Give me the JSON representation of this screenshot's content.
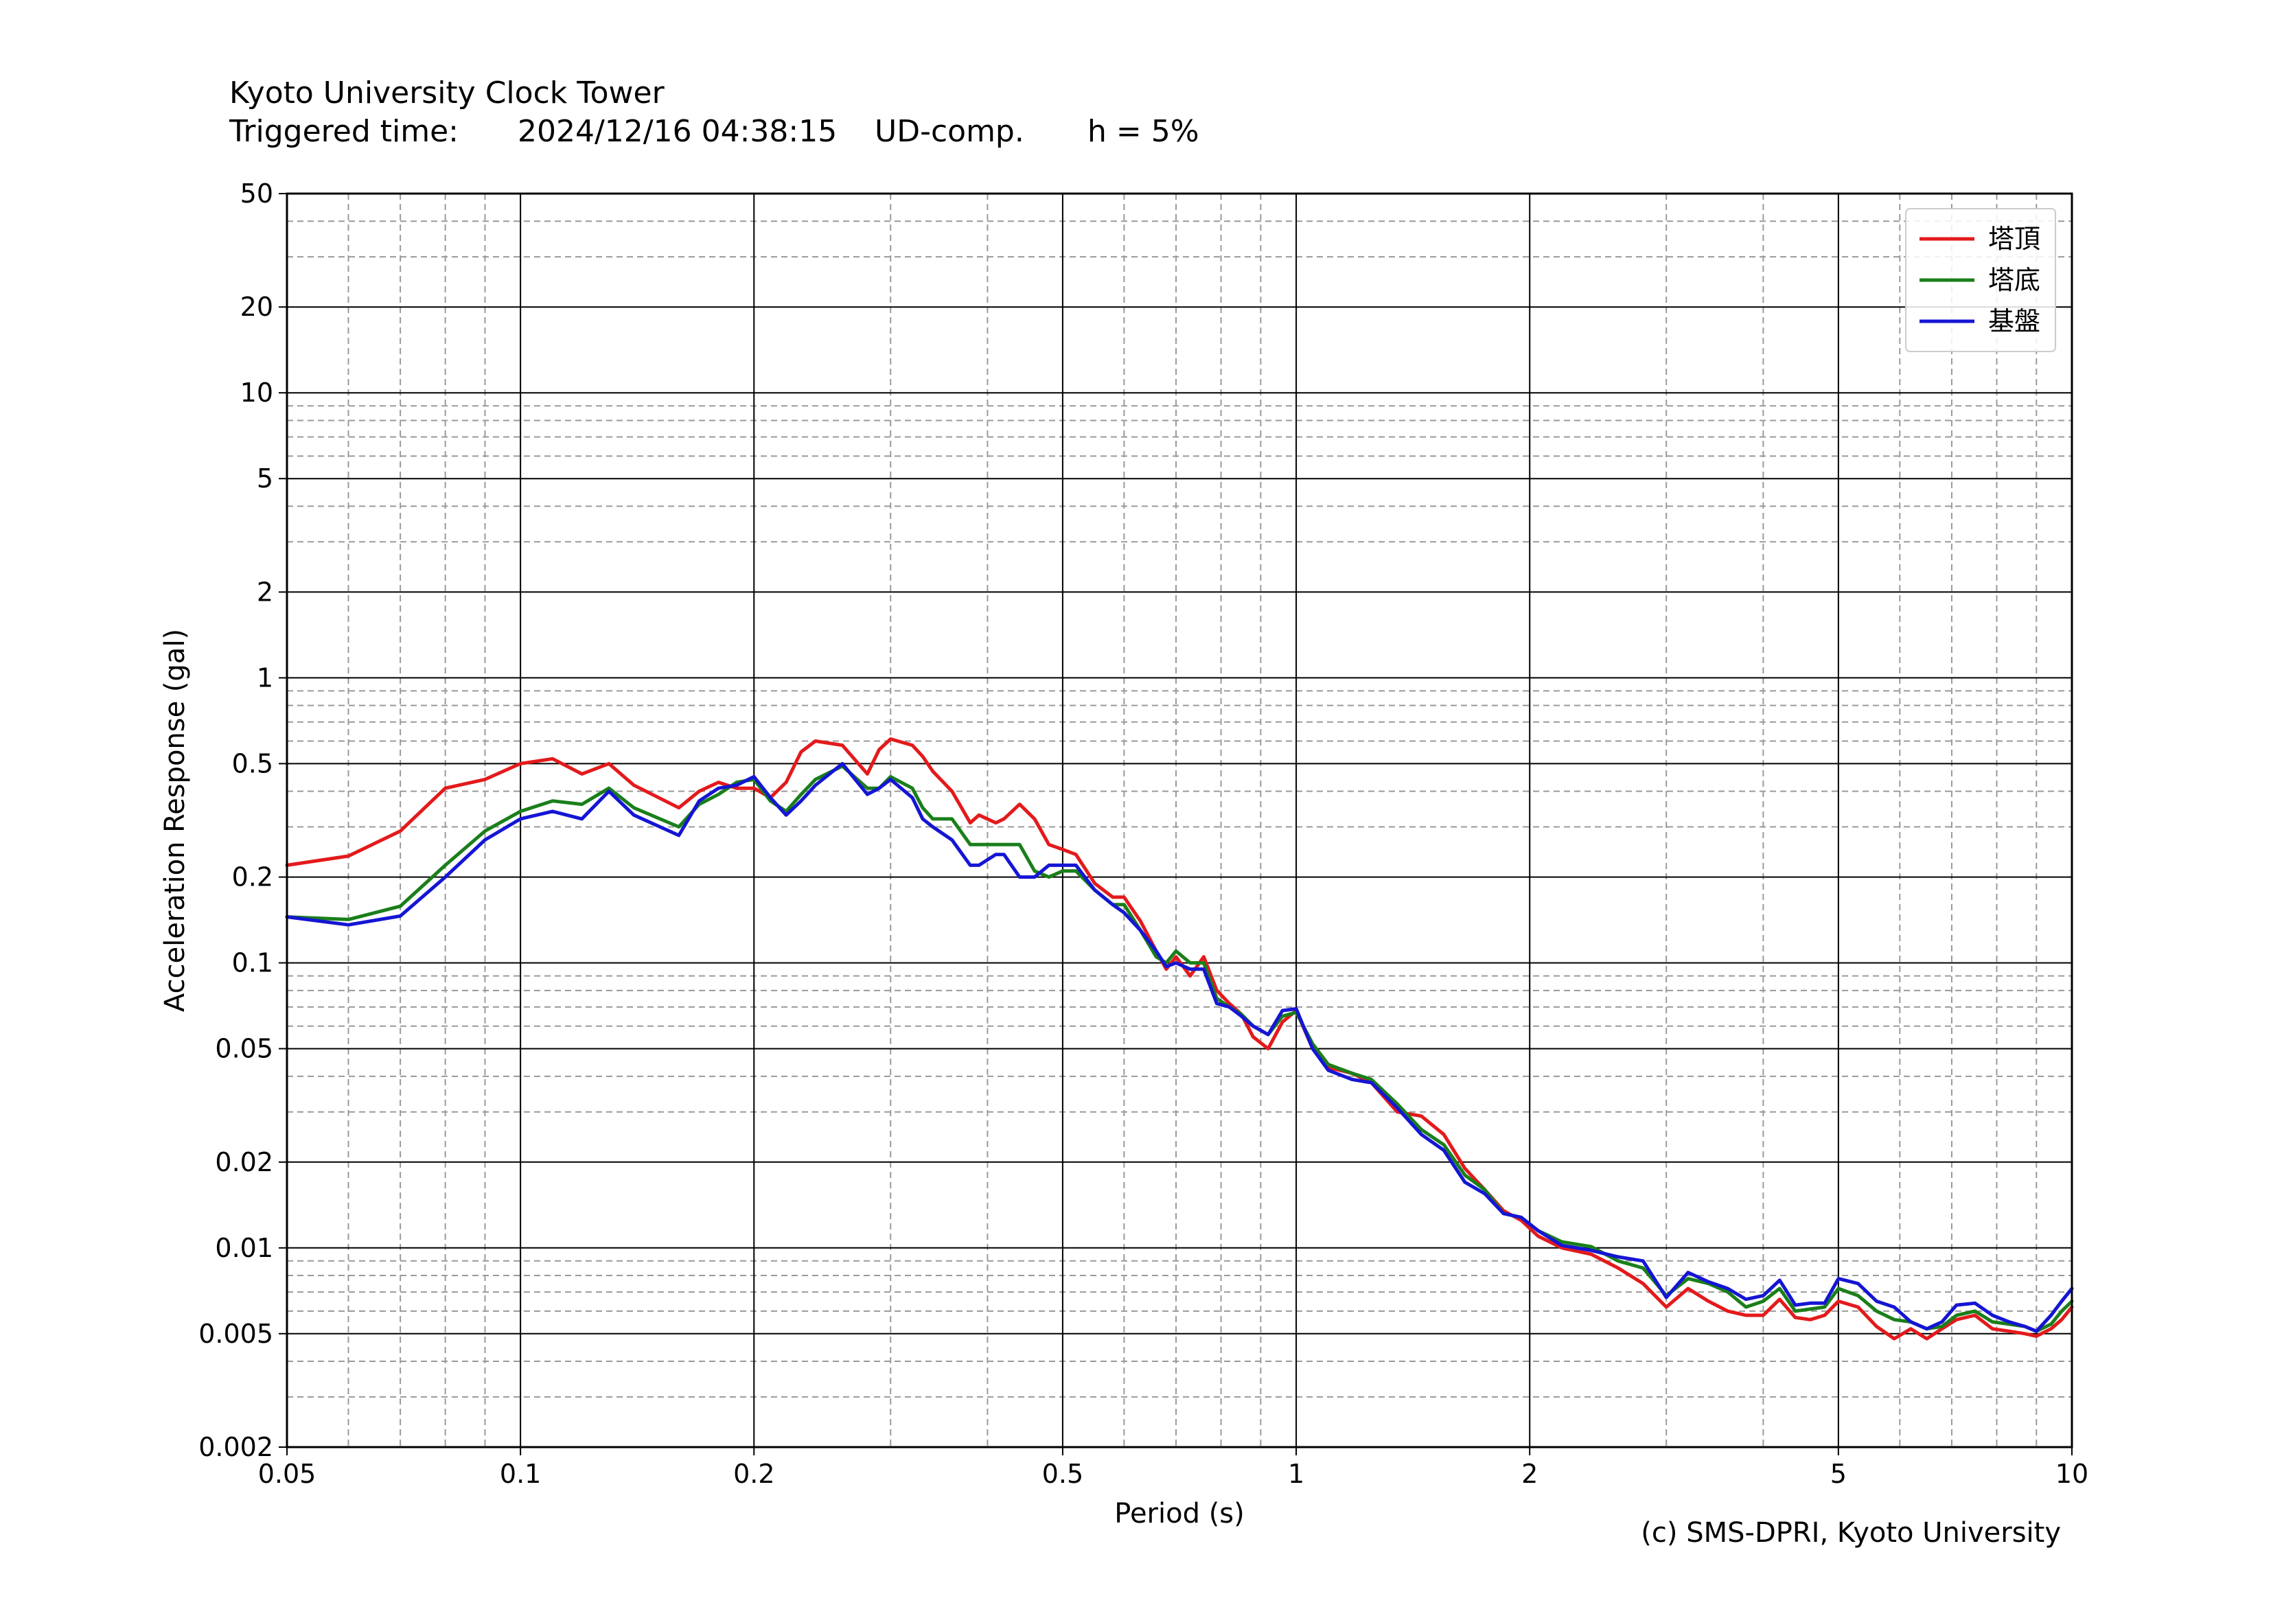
{
  "header": {
    "title": "Kyoto University Clock Tower",
    "trigger_label": "Triggered time:",
    "trigger_time": "2024/12/16 04:38:15",
    "component": "UD-comp.",
    "damping": "h = 5%"
  },
  "credit": "(c) SMS-DPRI, Kyoto University",
  "chart_data": {
    "type": "line",
    "title": "Kyoto University Clock Tower",
    "xlabel": "Period (s)",
    "ylabel": "Acceleration Response (gal)",
    "xscale": "log",
    "yscale": "log",
    "xlim": [
      0.05,
      10
    ],
    "ylim": [
      0.002,
      50
    ],
    "xticks": [
      {
        "v": 0.05,
        "label": "0.05"
      },
      {
        "v": 0.1,
        "label": "0.1"
      },
      {
        "v": 0.2,
        "label": "0.2"
      },
      {
        "v": 0.5,
        "label": "0.5"
      },
      {
        "v": 1,
        "label": "1"
      },
      {
        "v": 2,
        "label": "2"
      },
      {
        "v": 5,
        "label": "5"
      },
      {
        "v": 10,
        "label": "10"
      }
    ],
    "yticks": [
      {
        "v": 0.002,
        "label": "0.002"
      },
      {
        "v": 0.005,
        "label": "0.005"
      },
      {
        "v": 0.01,
        "label": "0.01"
      },
      {
        "v": 0.02,
        "label": "0.02"
      },
      {
        "v": 0.05,
        "label": "0.05"
      },
      {
        "v": 0.1,
        "label": "0.1"
      },
      {
        "v": 0.2,
        "label": "0.2"
      },
      {
        "v": 0.5,
        "label": "0.5"
      },
      {
        "v": 1,
        "label": "1"
      },
      {
        "v": 2,
        "label": "2"
      },
      {
        "v": 5,
        "label": "5"
      },
      {
        "v": 10,
        "label": "10"
      },
      {
        "v": 20,
        "label": "20"
      },
      {
        "v": 50,
        "label": "50"
      }
    ],
    "grid": true,
    "legend_position": "top-right",
    "series": [
      {
        "name": "塔頂",
        "color": "#e31a1c",
        "points": [
          [
            0.05,
            0.22
          ],
          [
            0.06,
            0.237
          ],
          [
            0.07,
            0.29
          ],
          [
            0.08,
            0.41
          ],
          [
            0.09,
            0.44
          ],
          [
            0.1,
            0.5
          ],
          [
            0.11,
            0.52
          ],
          [
            0.12,
            0.46
          ],
          [
            0.13,
            0.5
          ],
          [
            0.14,
            0.42
          ],
          [
            0.16,
            0.35
          ],
          [
            0.17,
            0.4
          ],
          [
            0.18,
            0.43
          ],
          [
            0.19,
            0.41
          ],
          [
            0.2,
            0.41
          ],
          [
            0.21,
            0.38
          ],
          [
            0.22,
            0.43
          ],
          [
            0.23,
            0.55
          ],
          [
            0.24,
            0.6
          ],
          [
            0.26,
            0.58
          ],
          [
            0.28,
            0.46
          ],
          [
            0.29,
            0.56
          ],
          [
            0.3,
            0.61
          ],
          [
            0.32,
            0.58
          ],
          [
            0.33,
            0.53
          ],
          [
            0.34,
            0.47
          ],
          [
            0.36,
            0.4
          ],
          [
            0.38,
            0.31
          ],
          [
            0.39,
            0.33
          ],
          [
            0.41,
            0.31
          ],
          [
            0.42,
            0.32
          ],
          [
            0.44,
            0.36
          ],
          [
            0.46,
            0.32
          ],
          [
            0.48,
            0.26
          ],
          [
            0.5,
            0.25
          ],
          [
            0.52,
            0.24
          ],
          [
            0.55,
            0.19
          ],
          [
            0.58,
            0.17
          ],
          [
            0.6,
            0.17
          ],
          [
            0.63,
            0.14
          ],
          [
            0.66,
            0.11
          ],
          [
            0.68,
            0.095
          ],
          [
            0.7,
            0.105
          ],
          [
            0.73,
            0.09
          ],
          [
            0.76,
            0.105
          ],
          [
            0.79,
            0.08
          ],
          [
            0.82,
            0.072
          ],
          [
            0.85,
            0.066
          ],
          [
            0.88,
            0.055
          ],
          [
            0.92,
            0.05
          ],
          [
            0.96,
            0.062
          ],
          [
            1.0,
            0.068
          ],
          [
            1.05,
            0.05
          ],
          [
            1.1,
            0.043
          ],
          [
            1.18,
            0.041
          ],
          [
            1.25,
            0.038
          ],
          [
            1.35,
            0.03
          ],
          [
            1.45,
            0.029
          ],
          [
            1.55,
            0.025
          ],
          [
            1.65,
            0.019
          ],
          [
            1.75,
            0.016
          ],
          [
            1.85,
            0.0135
          ],
          [
            1.95,
            0.0125
          ],
          [
            2.05,
            0.011
          ],
          [
            2.2,
            0.01
          ],
          [
            2.4,
            0.0095
          ],
          [
            2.6,
            0.0085
          ],
          [
            2.8,
            0.0075
          ],
          [
            3.0,
            0.0062
          ],
          [
            3.2,
            0.0072
          ],
          [
            3.4,
            0.0065
          ],
          [
            3.6,
            0.006
          ],
          [
            3.8,
            0.0058
          ],
          [
            4.0,
            0.0058
          ],
          [
            4.2,
            0.0066
          ],
          [
            4.4,
            0.0057
          ],
          [
            4.6,
            0.0056
          ],
          [
            4.8,
            0.0058
          ],
          [
            5.0,
            0.0065
          ],
          [
            5.3,
            0.0062
          ],
          [
            5.6,
            0.0053
          ],
          [
            5.9,
            0.0048
          ],
          [
            6.2,
            0.0052
          ],
          [
            6.5,
            0.0048
          ],
          [
            6.8,
            0.0052
          ],
          [
            7.1,
            0.0056
          ],
          [
            7.5,
            0.0058
          ],
          [
            7.9,
            0.0052
          ],
          [
            8.3,
            0.0051
          ],
          [
            8.7,
            0.005
          ],
          [
            9.0,
            0.0049
          ],
          [
            9.4,
            0.0052
          ],
          [
            9.7,
            0.0056
          ],
          [
            10.0,
            0.0062
          ]
        ]
      },
      {
        "name": "塔底",
        "color": "#1a7f1a",
        "points": [
          [
            0.05,
            0.145
          ],
          [
            0.06,
            0.142
          ],
          [
            0.07,
            0.158
          ],
          [
            0.08,
            0.22
          ],
          [
            0.09,
            0.29
          ],
          [
            0.1,
            0.34
          ],
          [
            0.11,
            0.37
          ],
          [
            0.12,
            0.36
          ],
          [
            0.13,
            0.41
          ],
          [
            0.14,
            0.35
          ],
          [
            0.16,
            0.3
          ],
          [
            0.17,
            0.36
          ],
          [
            0.18,
            0.39
          ],
          [
            0.19,
            0.43
          ],
          [
            0.2,
            0.44
          ],
          [
            0.21,
            0.37
          ],
          [
            0.22,
            0.34
          ],
          [
            0.23,
            0.39
          ],
          [
            0.24,
            0.44
          ],
          [
            0.26,
            0.49
          ],
          [
            0.28,
            0.41
          ],
          [
            0.29,
            0.41
          ],
          [
            0.3,
            0.45
          ],
          [
            0.32,
            0.41
          ],
          [
            0.33,
            0.35
          ],
          [
            0.34,
            0.32
          ],
          [
            0.36,
            0.32
          ],
          [
            0.38,
            0.26
          ],
          [
            0.4,
            0.26
          ],
          [
            0.42,
            0.26
          ],
          [
            0.44,
            0.26
          ],
          [
            0.46,
            0.21
          ],
          [
            0.48,
            0.2
          ],
          [
            0.5,
            0.21
          ],
          [
            0.52,
            0.21
          ],
          [
            0.55,
            0.18
          ],
          [
            0.58,
            0.16
          ],
          [
            0.6,
            0.16
          ],
          [
            0.63,
            0.13
          ],
          [
            0.66,
            0.105
          ],
          [
            0.68,
            0.1
          ],
          [
            0.7,
            0.11
          ],
          [
            0.73,
            0.1
          ],
          [
            0.76,
            0.1
          ],
          [
            0.79,
            0.075
          ],
          [
            0.82,
            0.07
          ],
          [
            0.85,
            0.066
          ],
          [
            0.88,
            0.06
          ],
          [
            0.92,
            0.056
          ],
          [
            0.96,
            0.065
          ],
          [
            1.0,
            0.067
          ],
          [
            1.05,
            0.052
          ],
          [
            1.1,
            0.044
          ],
          [
            1.18,
            0.041
          ],
          [
            1.25,
            0.039
          ],
          [
            1.35,
            0.032
          ],
          [
            1.45,
            0.026
          ],
          [
            1.55,
            0.023
          ],
          [
            1.65,
            0.018
          ],
          [
            1.75,
            0.016
          ],
          [
            1.85,
            0.0132
          ],
          [
            1.95,
            0.0128
          ],
          [
            2.05,
            0.0115
          ],
          [
            2.2,
            0.0105
          ],
          [
            2.4,
            0.0101
          ],
          [
            2.6,
            0.009
          ],
          [
            2.8,
            0.0085
          ],
          [
            3.0,
            0.0068
          ],
          [
            3.2,
            0.0078
          ],
          [
            3.4,
            0.0075
          ],
          [
            3.6,
            0.007
          ],
          [
            3.8,
            0.0062
          ],
          [
            4.0,
            0.0065
          ],
          [
            4.2,
            0.0072
          ],
          [
            4.4,
            0.006
          ],
          [
            4.6,
            0.0061
          ],
          [
            4.8,
            0.0062
          ],
          [
            5.0,
            0.0072
          ],
          [
            5.3,
            0.0068
          ],
          [
            5.6,
            0.006
          ],
          [
            5.9,
            0.0056
          ],
          [
            6.2,
            0.0055
          ],
          [
            6.5,
            0.0052
          ],
          [
            6.8,
            0.0053
          ],
          [
            7.1,
            0.0058
          ],
          [
            7.5,
            0.006
          ],
          [
            7.9,
            0.0055
          ],
          [
            8.3,
            0.0054
          ],
          [
            8.7,
            0.0053
          ],
          [
            9.0,
            0.0051
          ],
          [
            9.4,
            0.0054
          ],
          [
            9.7,
            0.006
          ],
          [
            10.0,
            0.0065
          ]
        ]
      },
      {
        "name": "基盤",
        "color": "#1515d4",
        "points": [
          [
            0.05,
            0.145
          ],
          [
            0.06,
            0.136
          ],
          [
            0.07,
            0.146
          ],
          [
            0.08,
            0.2
          ],
          [
            0.09,
            0.27
          ],
          [
            0.1,
            0.32
          ],
          [
            0.11,
            0.34
          ],
          [
            0.12,
            0.32
          ],
          [
            0.13,
            0.4
          ],
          [
            0.14,
            0.33
          ],
          [
            0.16,
            0.28
          ],
          [
            0.17,
            0.37
          ],
          [
            0.18,
            0.41
          ],
          [
            0.19,
            0.42
          ],
          [
            0.2,
            0.45
          ],
          [
            0.21,
            0.38
          ],
          [
            0.22,
            0.33
          ],
          [
            0.23,
            0.37
          ],
          [
            0.24,
            0.42
          ],
          [
            0.26,
            0.5
          ],
          [
            0.28,
            0.39
          ],
          [
            0.29,
            0.41
          ],
          [
            0.3,
            0.44
          ],
          [
            0.32,
            0.38
          ],
          [
            0.33,
            0.32
          ],
          [
            0.34,
            0.3
          ],
          [
            0.36,
            0.27
          ],
          [
            0.38,
            0.22
          ],
          [
            0.39,
            0.22
          ],
          [
            0.41,
            0.24
          ],
          [
            0.42,
            0.24
          ],
          [
            0.44,
            0.2
          ],
          [
            0.46,
            0.2
          ],
          [
            0.48,
            0.22
          ],
          [
            0.5,
            0.22
          ],
          [
            0.52,
            0.22
          ],
          [
            0.55,
            0.18
          ],
          [
            0.58,
            0.16
          ],
          [
            0.6,
            0.15
          ],
          [
            0.63,
            0.13
          ],
          [
            0.66,
            0.11
          ],
          [
            0.68,
            0.097
          ],
          [
            0.7,
            0.1
          ],
          [
            0.73,
            0.095
          ],
          [
            0.76,
            0.095
          ],
          [
            0.79,
            0.072
          ],
          [
            0.82,
            0.07
          ],
          [
            0.85,
            0.065
          ],
          [
            0.88,
            0.06
          ],
          [
            0.92,
            0.056
          ],
          [
            0.96,
            0.068
          ],
          [
            1.0,
            0.069
          ],
          [
            1.05,
            0.05
          ],
          [
            1.1,
            0.042
          ],
          [
            1.18,
            0.039
          ],
          [
            1.25,
            0.038
          ],
          [
            1.35,
            0.031
          ],
          [
            1.45,
            0.025
          ],
          [
            1.55,
            0.022
          ],
          [
            1.65,
            0.017
          ],
          [
            1.75,
            0.0155
          ],
          [
            1.85,
            0.0132
          ],
          [
            1.95,
            0.0128
          ],
          [
            2.05,
            0.0115
          ],
          [
            2.2,
            0.0102
          ],
          [
            2.4,
            0.0098
          ],
          [
            2.6,
            0.0093
          ],
          [
            2.8,
            0.009
          ],
          [
            3.0,
            0.0067
          ],
          [
            3.2,
            0.0082
          ],
          [
            3.4,
            0.0076
          ],
          [
            3.6,
            0.0072
          ],
          [
            3.8,
            0.0066
          ],
          [
            4.0,
            0.0068
          ],
          [
            4.2,
            0.0077
          ],
          [
            4.4,
            0.0063
          ],
          [
            4.6,
            0.0064
          ],
          [
            4.8,
            0.0064
          ],
          [
            5.0,
            0.0078
          ],
          [
            5.3,
            0.0075
          ],
          [
            5.6,
            0.0065
          ],
          [
            5.9,
            0.0062
          ],
          [
            6.2,
            0.0055
          ],
          [
            6.5,
            0.0052
          ],
          [
            6.8,
            0.0055
          ],
          [
            7.1,
            0.0063
          ],
          [
            7.5,
            0.0064
          ],
          [
            7.9,
            0.0058
          ],
          [
            8.3,
            0.0055
          ],
          [
            8.7,
            0.0053
          ],
          [
            9.0,
            0.0051
          ],
          [
            9.4,
            0.0058
          ],
          [
            9.7,
            0.0065
          ],
          [
            10.0,
            0.0072
          ]
        ]
      }
    ]
  }
}
